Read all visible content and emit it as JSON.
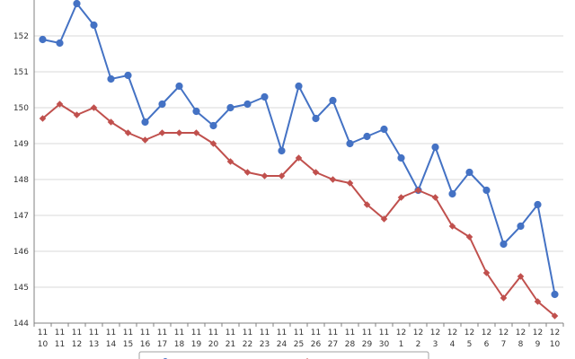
{
  "chart_data": {
    "type": "line",
    "title": "",
    "xlabel": "",
    "ylabel": "",
    "ylim": [
      144,
      153
    ],
    "yticks": [
      144,
      145,
      146,
      147,
      148,
      149,
      150,
      151,
      152
    ],
    "grid": true,
    "categories": [
      [
        "11",
        "10"
      ],
      [
        "11",
        "11"
      ],
      [
        "11",
        "12"
      ],
      [
        "11",
        "13"
      ],
      [
        "11",
        "14"
      ],
      [
        "11",
        "15"
      ],
      [
        "11",
        "16"
      ],
      [
        "11",
        "17"
      ],
      [
        "11",
        "18"
      ],
      [
        "11",
        "19"
      ],
      [
        "11",
        "20"
      ],
      [
        "11",
        "21"
      ],
      [
        "11",
        "22"
      ],
      [
        "11",
        "23"
      ],
      [
        "11",
        "24"
      ],
      [
        "11",
        "25"
      ],
      [
        "11",
        "26"
      ],
      [
        "11",
        "27"
      ],
      [
        "11",
        "28"
      ],
      [
        "11",
        "29"
      ],
      [
        "11",
        "30"
      ],
      [
        "12",
        "1"
      ],
      [
        "12",
        "2"
      ],
      [
        "12",
        "3"
      ],
      [
        "12",
        "4"
      ],
      [
        "12",
        "5"
      ],
      [
        "12",
        "6"
      ],
      [
        "12",
        "7"
      ],
      [
        "12",
        "8"
      ],
      [
        "12",
        "9"
      ],
      [
        "12",
        "10"
      ]
    ],
    "series": [
      {
        "color": "#4472c4",
        "marker": "circle",
        "values": [
          151.9,
          151.8,
          152.9,
          152.3,
          150.8,
          150.9,
          149.6,
          150.1,
          150.6,
          149.9,
          149.5,
          150.0,
          150.1,
          150.3,
          148.8,
          150.6,
          149.7,
          150.2,
          149.0,
          149.2,
          149.4,
          148.6,
          147.7,
          148.9,
          147.6,
          148.2,
          147.7,
          146.2,
          146.7,
          147.3,
          144.8
        ]
      },
      {
        "color": "#c0504d",
        "marker": "diamond",
        "values": [
          149.7,
          150.1,
          149.8,
          150.0,
          149.6,
          149.3,
          149.1,
          149.3,
          149.3,
          149.3,
          149.0,
          148.5,
          148.2,
          148.1,
          148.1,
          148.6,
          148.2,
          148.0,
          147.9,
          147.3,
          146.9,
          147.5,
          147.7,
          147.5,
          146.7,
          146.4,
          145.4,
          144.7,
          145.3,
          144.6,
          144.2
        ]
      }
    ]
  }
}
